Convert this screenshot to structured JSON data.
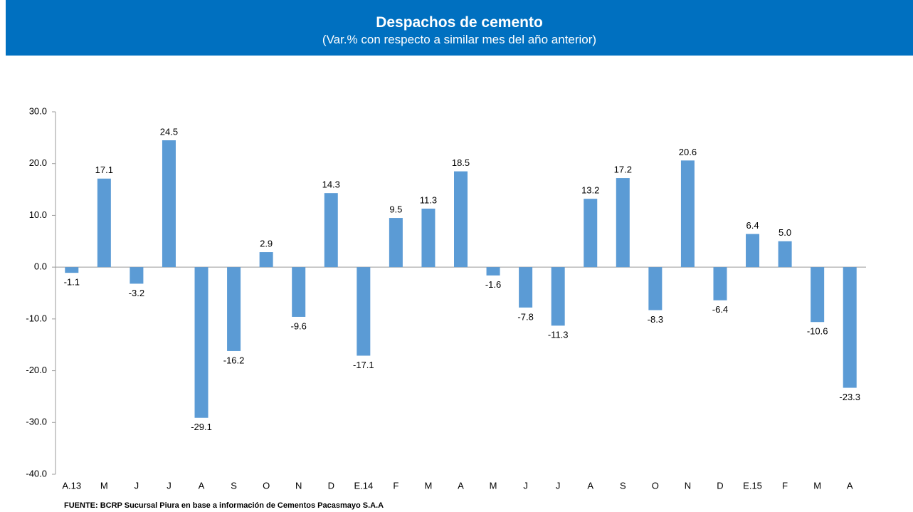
{
  "chart_data": {
    "type": "bar",
    "title": "Despachos de cemento",
    "subtitle": "(Var.% con respecto a similar mes del año anterior)",
    "source": "FUENTE: BCRP Sucursal Piura en base a información de Cementos Pacasmayo S.A.A",
    "categories": [
      "A.13",
      "M",
      "J",
      "J",
      "A",
      "S",
      "O",
      "N",
      "D",
      "E.14",
      "F",
      "M",
      "A",
      "M",
      "J",
      "J",
      "A",
      "S",
      "O",
      "N",
      "D",
      "E.15",
      "F",
      "M",
      "A"
    ],
    "values": [
      -1.1,
      17.1,
      -3.2,
      24.5,
      -29.1,
      -16.2,
      2.9,
      -9.6,
      14.3,
      -17.1,
      9.5,
      11.3,
      18.5,
      -1.6,
      -7.8,
      -11.3,
      13.2,
      17.2,
      -8.3,
      20.6,
      -6.4,
      6.4,
      5.0,
      -10.6,
      -23.3
    ],
    "value_labels": [
      "-1.1",
      "17.1",
      "-3.2",
      "24.5",
      "-29.1",
      "-16.2",
      "2.9",
      "-9.6",
      "14.3",
      "-17.1",
      "9.5",
      "11.3",
      "18.5",
      "-1.6",
      "-7.8",
      "-11.3",
      "13.2",
      "17.2",
      "-8.3",
      "20.6",
      "-6.4",
      "6.4",
      "5.0",
      "-10.6",
      "-23.3"
    ],
    "color": "#5b9bd5",
    "ylim": [
      -40,
      30
    ],
    "yticks": [
      {
        "value": -40,
        "label": "-40.0"
      },
      {
        "value": -30,
        "label": "-30.0"
      },
      {
        "value": -20,
        "label": "-20.0"
      },
      {
        "value": -10,
        "label": "-10.0"
      },
      {
        "value": 0,
        "label": "0.0"
      },
      {
        "value": 10,
        "label": "10.0"
      },
      {
        "value": 20,
        "label": "20.0"
      },
      {
        "value": 30,
        "label": "30.0"
      }
    ]
  }
}
